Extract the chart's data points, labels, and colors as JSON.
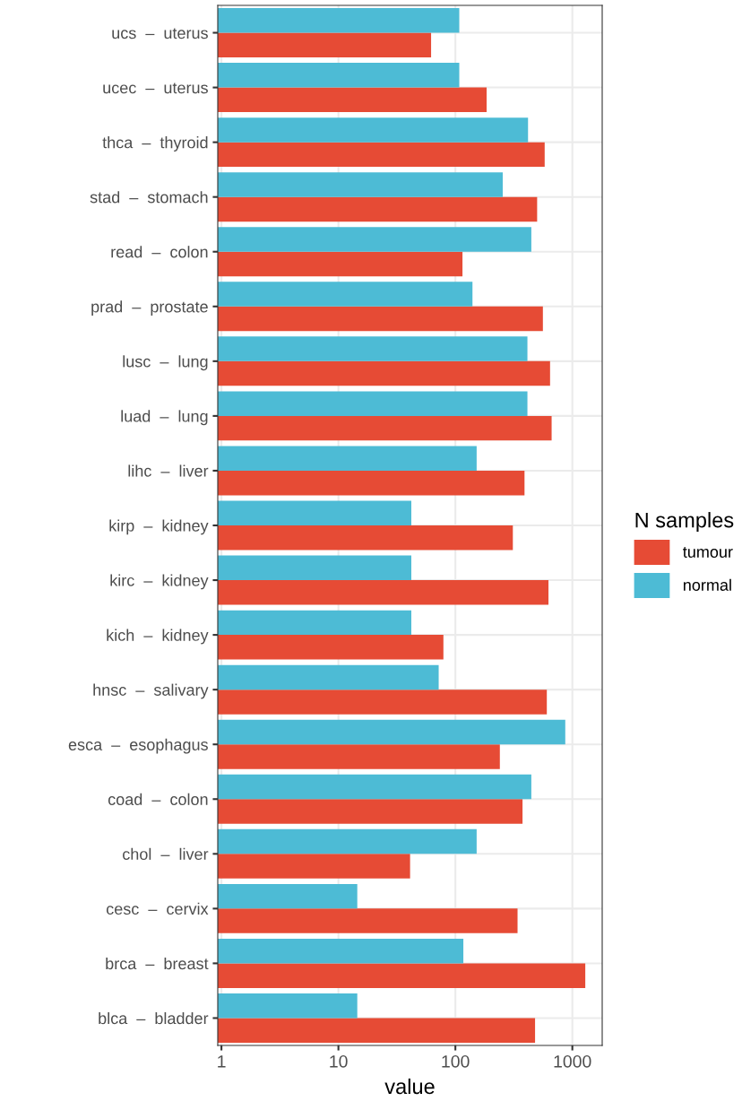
{
  "chart_data": {
    "type": "bar",
    "orientation": "horizontal",
    "xlabel": "value",
    "legend_title": "N samples",
    "legend": "right",
    "log": "x",
    "grid": true,
    "categories": [
      "ucs  –  uterus",
      "ucec  –  uterus",
      "thca  –  thyroid",
      "stad  –  stomach",
      "read  –  colon",
      "prad  –  prostate",
      "lusc  –  lung",
      "luad  –  lung",
      "lihc  –  liver",
      "kirp  –  kidney",
      "kirc  –  kidney",
      "kich  –  kidney",
      "hnsc  –  salivary",
      "esca  –  esophagus",
      "coad  –  colon",
      "chol  –  liver",
      "cesc  –  cervix",
      "brca  –  breast",
      "blca  –  bladder"
    ],
    "series": [
      {
        "name": "tumour",
        "color": "#e64b35",
        "values": [
          62,
          185,
          580,
          500,
          115,
          560,
          645,
          665,
          390,
          310,
          625,
          79,
          605,
          240,
          375,
          41,
          340,
          1290,
          480
        ]
      },
      {
        "name": "normal",
        "color": "#4dbbd5",
        "values": [
          108,
          108,
          418,
          254,
          446,
          140,
          413,
          413,
          152,
          42,
          42,
          42,
          72,
          870,
          446,
          152,
          14.5,
          117,
          14.5
        ]
      }
    ],
    "xlim": [
      0.93,
      1800
    ],
    "xticks": [
      1,
      10,
      100,
      1000
    ]
  }
}
